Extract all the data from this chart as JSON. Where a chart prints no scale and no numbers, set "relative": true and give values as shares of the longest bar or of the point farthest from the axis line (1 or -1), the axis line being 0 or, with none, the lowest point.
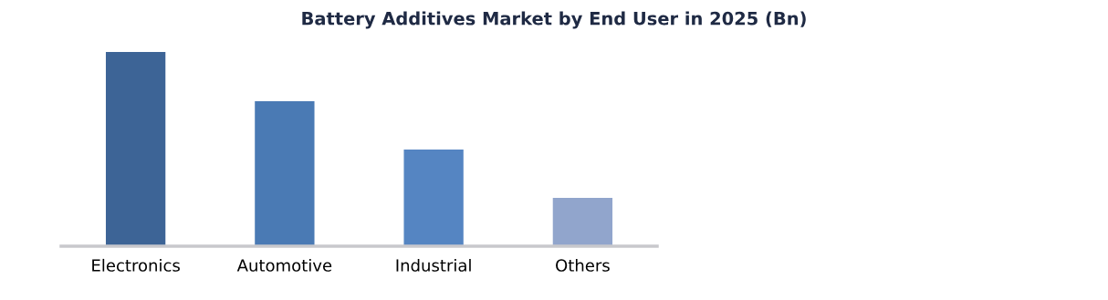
{
  "chart_data": {
    "type": "bar",
    "title": "Battery Additives Market by End User in 2025 (Bn)",
    "categories": [
      "Electronics",
      "Automotive",
      "Industrial",
      "Others"
    ],
    "values": [
      1,
      0.746,
      0.498,
      0.249
    ],
    "colors": [
      "#3d6496",
      "#4a7ab4",
      "#5585c2",
      "#91a5cc"
    ],
    "relative": true,
    "grid": false,
    "legend": false
  }
}
